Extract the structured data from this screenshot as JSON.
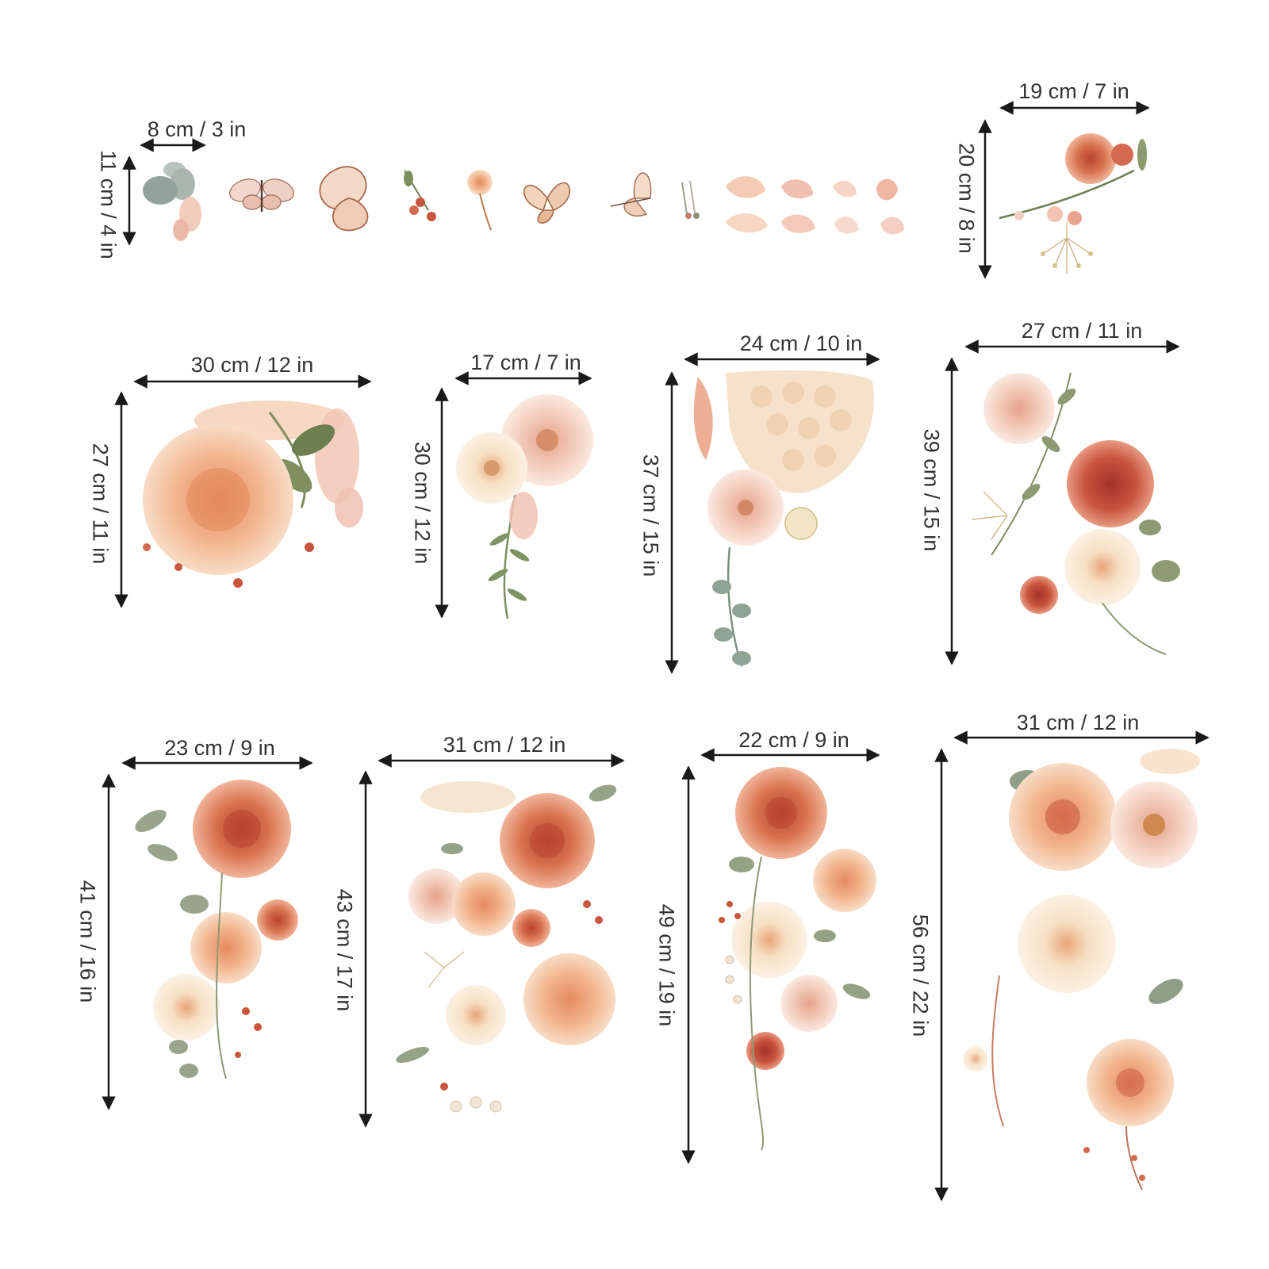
{
  "colors": {
    "arrow": "#1a1a1a",
    "text": "#333333",
    "peach": "#f3c3a4",
    "coral": "#d9734f",
    "cream": "#f6e5cd",
    "terracotta": "#c9553d",
    "sage": "#8e9a7c",
    "blush": "#efc6b8"
  },
  "stickers": [
    {
      "id": "small-pieces",
      "width_label": "8 cm / 3 in",
      "height_label": "11 cm / 4 in"
    },
    {
      "id": "sprig",
      "width_label": "19 cm / 7 in",
      "height_label": "20 cm / 8 in"
    },
    {
      "id": "peony-cluster",
      "width_label": "30 cm / 12 in",
      "height_label": "27 cm / 11 in"
    },
    {
      "id": "anemone-pair",
      "width_label": "17 cm / 7 in",
      "height_label": "30 cm / 12 in"
    },
    {
      "id": "hydrangea",
      "width_label": "24 cm / 10 in",
      "height_label": "37 cm / 15 in"
    },
    {
      "id": "rose-column",
      "width_label": "27 cm / 11 in",
      "height_label": "39 cm / 15 in"
    },
    {
      "id": "peony-cascade",
      "width_label": "23 cm / 9 in",
      "height_label": "41 cm / 16 in"
    },
    {
      "id": "large-bouquet",
      "width_label": "31 cm / 12 in",
      "height_label": "43 cm / 17 in"
    },
    {
      "id": "dahlia-cascade",
      "width_label": "22 cm / 9 in",
      "height_label": "49 cm / 19 in"
    },
    {
      "id": "tall-cascade",
      "width_label": "31 cm / 12 in",
      "height_label": "56 cm / 22 in"
    }
  ]
}
